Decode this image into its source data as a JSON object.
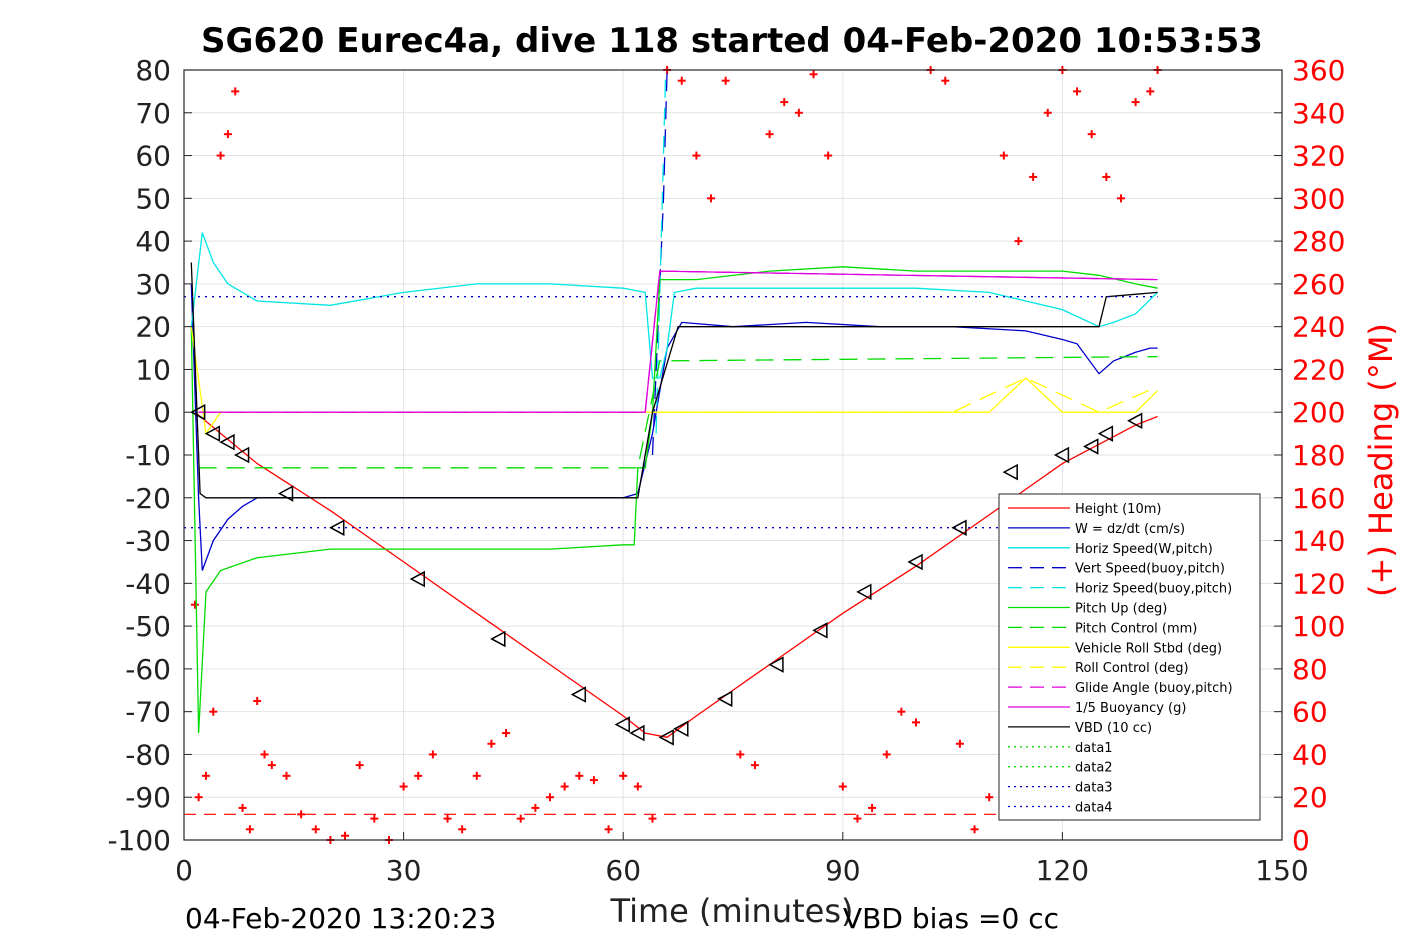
{
  "chart_data": {
    "type": "line",
    "title": "SG620 Eurec4a, dive 118 started 04-Feb-2020 10:53:53",
    "xlabel": "Time (minutes)",
    "ylabel": "",
    "y2label": "(+) Heading (°M)",
    "xlim": [
      0,
      150
    ],
    "ylim": [
      -100,
      80
    ],
    "y2lim": [
      0,
      360
    ],
    "xticks": [
      "0",
      "30",
      "60",
      "90",
      "120",
      "150"
    ],
    "yticks": [
      "80",
      "70",
      "60",
      "50",
      "40",
      "30",
      "20",
      "10",
      "0",
      "-10",
      "-20",
      "-30",
      "-40",
      "-50",
      "-60",
      "-70",
      "-80",
      "-90",
      "-100"
    ],
    "y2ticks": [
      "360",
      "340",
      "320",
      "300",
      "280",
      "260",
      "240",
      "220",
      "200",
      "180",
      "160",
      "140",
      "120",
      "100",
      "80",
      "60",
      "40",
      "20",
      "0"
    ],
    "grid": true,
    "legend_position": "lower-right",
    "footer_left": "04-Feb-2020 13:20:23",
    "footer_right": "VBD bias =0 cc",
    "colors": {
      "red": "#ff0000",
      "blue": "#0000cc",
      "cyan": "#00e5e5",
      "green": "#00dd00",
      "yellow": "#ffff00",
      "magenta": "#dd00dd",
      "black": "#000000"
    },
    "series": [
      {
        "name": "Height (10m)",
        "x": [
          1.5,
          10,
          20,
          30,
          40,
          50,
          60,
          63,
          66,
          70,
          80,
          90,
          100,
          110,
          120,
          130,
          133
        ],
        "y": [
          0,
          -12,
          -23,
          -35,
          -47,
          -59,
          -71,
          -75,
          -76,
          -71,
          -59,
          -47,
          -36,
          -24,
          -12,
          -3,
          -1
        ]
      },
      {
        "name": "W = dz/dt (cm/s)",
        "x": [
          1,
          2,
          2.5,
          4,
          6,
          8,
          10,
          20,
          30,
          40,
          50,
          60,
          62,
          64,
          66,
          68,
          75,
          85,
          95,
          105,
          115,
          120,
          122,
          125,
          127,
          130,
          132,
          133
        ],
        "y": [
          30,
          -20,
          -37,
          -30,
          -25,
          -22,
          -20,
          -20,
          -20,
          -20,
          -20,
          -20,
          -19,
          -5,
          15,
          21,
          20,
          21,
          20,
          20,
          19,
          17,
          16,
          9,
          12,
          14,
          15,
          15
        ]
      },
      {
        "name": "Horiz Speed(W,pitch)",
        "x": [
          1,
          2.5,
          4,
          6,
          10,
          20,
          30,
          40,
          50,
          60,
          63,
          64,
          65,
          66,
          67,
          70,
          80,
          90,
          100,
          110,
          120,
          125,
          127,
          130,
          133
        ],
        "y": [
          20,
          42,
          35,
          30,
          26,
          25,
          28,
          30,
          30,
          29,
          28,
          8,
          8,
          15,
          28,
          29,
          29,
          29,
          29,
          28,
          24,
          20,
          21,
          23,
          28
        ]
      },
      {
        "name": "Vert Speed(buoy,pitch)",
        "x": [
          64,
          65.5,
          66
        ],
        "y": [
          -10,
          50,
          80
        ],
        "dashed": true
      },
      {
        "name": "Horiz Speed(buoy,pitch)",
        "x": [
          64.5,
          65.8
        ],
        "y": [
          -5,
          80
        ],
        "dashed": true
      },
      {
        "name": "Pitch Up (deg)",
        "x": [
          1,
          2,
          3,
          5,
          10,
          20,
          30,
          40,
          50,
          60,
          61.5,
          62,
          63,
          64,
          65,
          66,
          70,
          80,
          90,
          100,
          110,
          120,
          125,
          130,
          133
        ],
        "y": [
          20,
          -75,
          -42,
          -37,
          -34,
          -32,
          -32,
          -32,
          -32,
          -31,
          -31,
          -13,
          -13,
          0,
          31,
          31,
          31,
          33,
          34,
          33,
          33,
          33,
          32,
          30,
          29
        ]
      },
      {
        "name": "Pitch Control (mm)",
        "x": [
          2,
          62,
          65,
          133
        ],
        "y": [
          -13,
          -13,
          12,
          13
        ],
        "dashed": true
      },
      {
        "name": "Vehicle Roll Stbd (deg)",
        "x": [
          1,
          3,
          5,
          10,
          20,
          30,
          40,
          50,
          60,
          65,
          70,
          80,
          90,
          100,
          110,
          115,
          120,
          125,
          130,
          133
        ],
        "y": [
          20,
          -5,
          0,
          0,
          0,
          0,
          0,
          0,
          0,
          0,
          0,
          0,
          0,
          0,
          0,
          8,
          0,
          0,
          0,
          5
        ]
      },
      {
        "name": "Roll Control (deg)",
        "x": [
          2,
          10,
          20,
          30,
          40,
          50,
          60,
          65,
          75,
          85,
          95,
          105,
          115,
          125,
          133
        ],
        "y": [
          0,
          0,
          0,
          0,
          0,
          0,
          0,
          0,
          0,
          0,
          0,
          0,
          8,
          0,
          6
        ],
        "dashed": true
      },
      {
        "name": "Glide Angle (buoy,pitch)",
        "x": [
          2,
          63,
          65,
          133
        ],
        "y": [
          0,
          0,
          33,
          31
        ],
        "dashed": true
      },
      {
        "name": "1/5 Buoyancy (g)",
        "x": [
          2,
          63,
          65,
          133
        ],
        "y": [
          0,
          0,
          33,
          31
        ]
      },
      {
        "name": "VBD (10 cc)",
        "x": [
          1,
          2.2,
          3,
          62,
          64,
          67.5,
          125,
          126,
          133
        ],
        "y": [
          35,
          -19,
          -20,
          -20,
          0,
          20,
          20,
          27,
          28
        ]
      },
      {
        "name": "data1",
        "x": [],
        "y": [],
        "dotted": true
      },
      {
        "name": "data2",
        "x": [],
        "y": [],
        "dotted": true
      },
      {
        "name": "data3",
        "x": [
          0,
          133
        ],
        "y": [
          -27,
          -27
        ],
        "dotted": true
      },
      {
        "name": "data4",
        "x": [
          0,
          133
        ],
        "y": [
          27,
          27
        ],
        "dotted": true
      }
    ],
    "heading_deg": {
      "x": [
        1.5,
        2,
        3,
        4,
        5,
        6,
        7,
        8,
        9,
        10,
        11,
        12,
        14,
        16,
        18,
        20,
        22,
        24,
        26,
        28,
        30,
        32,
        34,
        36,
        38,
        40,
        42,
        44,
        46,
        48,
        50,
        52,
        54,
        56,
        58,
        60,
        62,
        64,
        66,
        68,
        70,
        72,
        74,
        76,
        78,
        80,
        82,
        84,
        86,
        88,
        90,
        92,
        94,
        96,
        98,
        100,
        102,
        104,
        106,
        108,
        110,
        112,
        114,
        116,
        118,
        120,
        122,
        124,
        126,
        128,
        130,
        132,
        133
      ],
      "y": [
        110,
        20,
        30,
        60,
        320,
        330,
        350,
        15,
        5,
        65,
        40,
        35,
        30,
        12,
        5,
        0,
        2,
        35,
        10,
        0,
        25,
        30,
        40,
        10,
        5,
        30,
        45,
        50,
        10,
        15,
        20,
        25,
        30,
        28,
        5,
        30,
        25,
        10,
        360,
        355,
        320,
        300,
        355,
        40,
        35,
        330,
        345,
        340,
        358,
        320,
        25,
        10,
        15,
        40,
        60,
        55,
        360,
        355,
        45,
        5,
        20,
        320,
        280,
        310,
        340,
        360,
        350,
        330,
        310,
        300,
        345,
        350,
        360
      ]
    },
    "dive_markers": {
      "x": [
        2,
        4,
        6,
        8,
        14,
        21,
        32,
        43,
        54,
        60,
        62,
        66,
        68,
        74,
        81,
        87,
        93,
        100,
        106,
        113,
        120,
        124,
        126,
        130
      ],
      "y": [
        0,
        -5,
        -7,
        -10,
        -19,
        -27,
        -39,
        -53,
        -66,
        -73,
        -75,
        -76,
        -74,
        -67,
        -59,
        -51,
        -42,
        -35,
        -27,
        -14,
        -10,
        -8,
        -5,
        -2
      ]
    },
    "heading_reference": {
      "y": -94
    }
  }
}
